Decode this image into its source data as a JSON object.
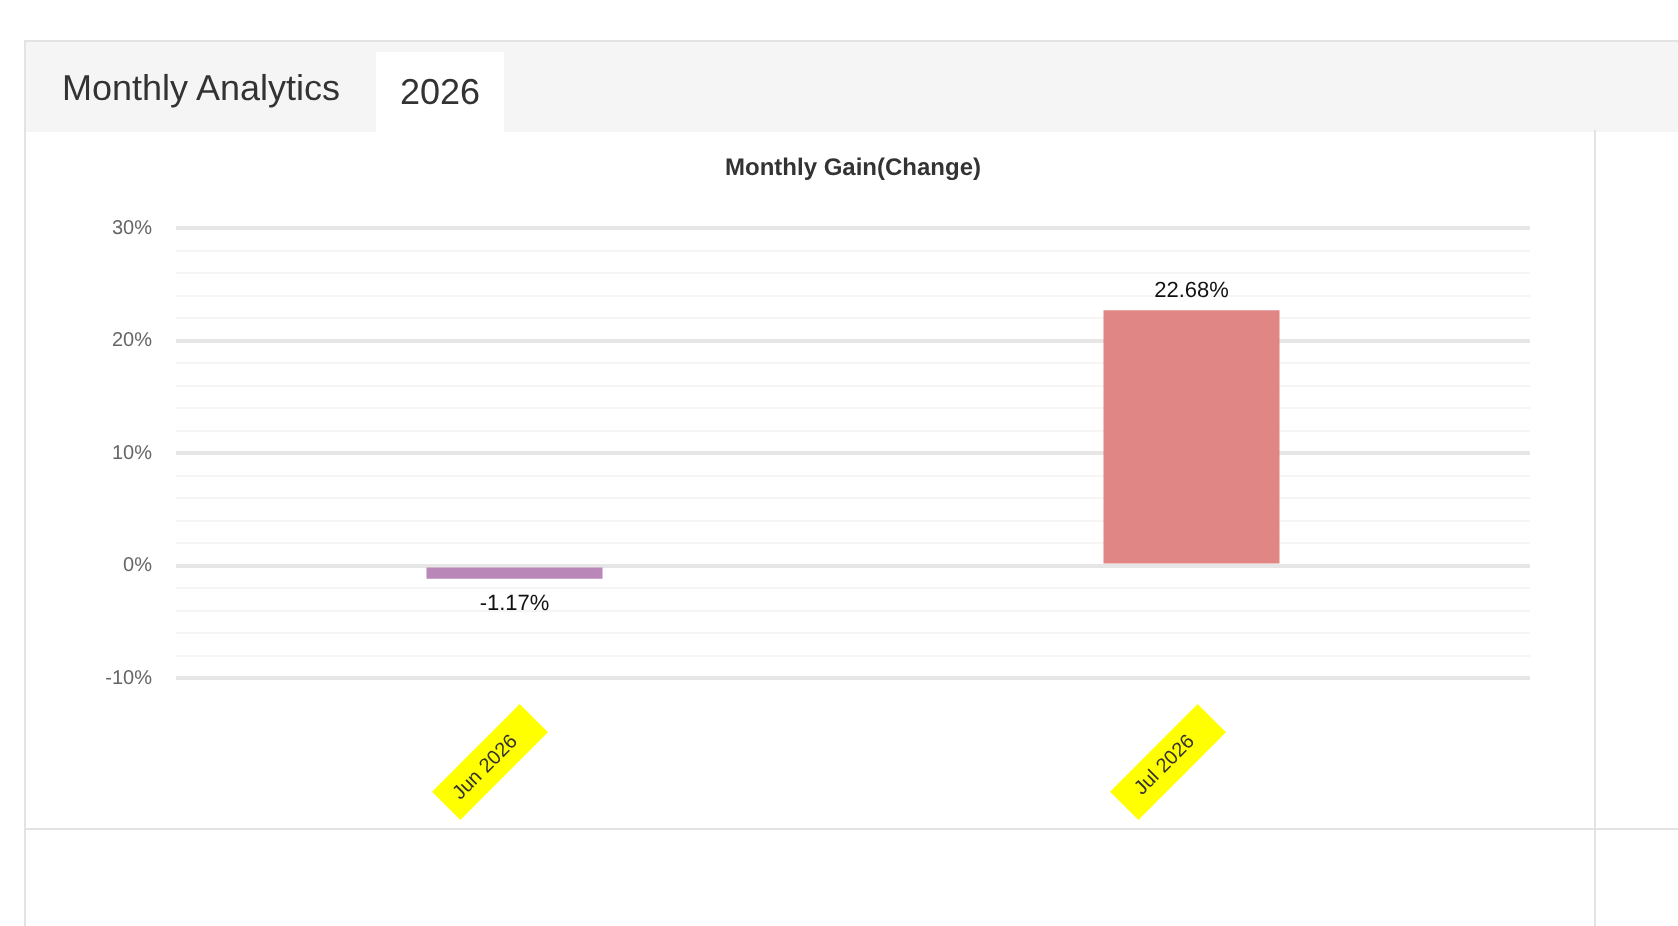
{
  "chart_data": {
    "type": "bar",
    "title": "Monthly Gain(Change)",
    "annotations": [
      "Monthly Analytics",
      "2026"
    ],
    "categories": [
      "Jun 2026",
      "Jul 2026"
    ],
    "values": [
      -1.17,
      22.68
    ],
    "colors": [
      "#b988b8",
      "#e08785"
    ],
    "value_labels": [
      "-1.17%",
      "22.68%"
    ],
    "ylim": [
      -10,
      30
    ],
    "yticks": [
      {
        "value": -10,
        "label": "-10%"
      },
      {
        "value": -8,
        "label": null
      },
      {
        "value": -6,
        "label": null
      },
      {
        "value": -4,
        "label": null
      },
      {
        "value": -2,
        "label": null
      },
      {
        "value": 0,
        "label": "0%"
      },
      {
        "value": 2,
        "label": null
      },
      {
        "value": 4,
        "label": null
      },
      {
        "value": 6,
        "label": null
      },
      {
        "value": 8,
        "label": null
      },
      {
        "value": 10,
        "label": "10%"
      },
      {
        "value": 12,
        "label": null
      },
      {
        "value": 14,
        "label": null
      },
      {
        "value": 16,
        "label": null
      },
      {
        "value": 18,
        "label": null
      },
      {
        "value": 20,
        "label": "20%"
      },
      {
        "value": 22,
        "label": null
      },
      {
        "value": 24,
        "label": null
      },
      {
        "value": 26,
        "label": null
      },
      {
        "value": 28,
        "label": null
      },
      {
        "value": 30,
        "label": "30%"
      }
    ],
    "grid": "y",
    "legend": false
  }
}
